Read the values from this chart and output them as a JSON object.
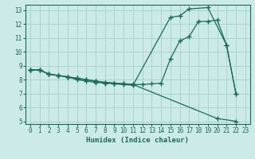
{
  "xlabel": "Humidex (Indice chaleur)",
  "bg_color": "#cceae7",
  "grid_color": "#aad4d0",
  "line_color": "#1a6b5a",
  "xlim": [
    -0.5,
    23.5
  ],
  "ylim": [
    4.8,
    13.4
  ],
  "xticks": [
    0,
    1,
    2,
    3,
    4,
    5,
    6,
    7,
    8,
    9,
    10,
    11,
    12,
    13,
    14,
    15,
    16,
    17,
    18,
    19,
    20,
    21,
    22,
    23
  ],
  "yticks": [
    5,
    6,
    7,
    8,
    9,
    10,
    11,
    12,
    13
  ],
  "line1_x": [
    0,
    1,
    2,
    3,
    4,
    5,
    6,
    7,
    8,
    9,
    10,
    11,
    15,
    16,
    17,
    19,
    21,
    22
  ],
  "line1_y": [
    8.7,
    8.7,
    8.4,
    8.3,
    8.2,
    8.0,
    7.9,
    7.8,
    7.75,
    7.7,
    7.65,
    7.6,
    12.5,
    12.6,
    13.1,
    13.2,
    10.5,
    7.0
  ],
  "line2_x": [
    0,
    1,
    2,
    3,
    4,
    5,
    6,
    7,
    8,
    9,
    10,
    11,
    12,
    13,
    14,
    15,
    16,
    17,
    18,
    19,
    20,
    21,
    22
  ],
  "line2_y": [
    8.7,
    8.7,
    8.4,
    8.3,
    8.2,
    8.1,
    8.0,
    7.9,
    7.8,
    7.75,
    7.7,
    7.65,
    7.65,
    7.7,
    7.75,
    9.5,
    10.8,
    11.1,
    12.2,
    12.2,
    12.3,
    10.5,
    7.0
  ],
  "line3_x": [
    0,
    1,
    2,
    3,
    4,
    5,
    6,
    7,
    8,
    9,
    10,
    11,
    20,
    22
  ],
  "line3_y": [
    8.7,
    8.7,
    8.4,
    8.3,
    8.2,
    8.1,
    8.0,
    7.9,
    7.8,
    7.75,
    7.7,
    7.65,
    5.2,
    5.0
  ]
}
